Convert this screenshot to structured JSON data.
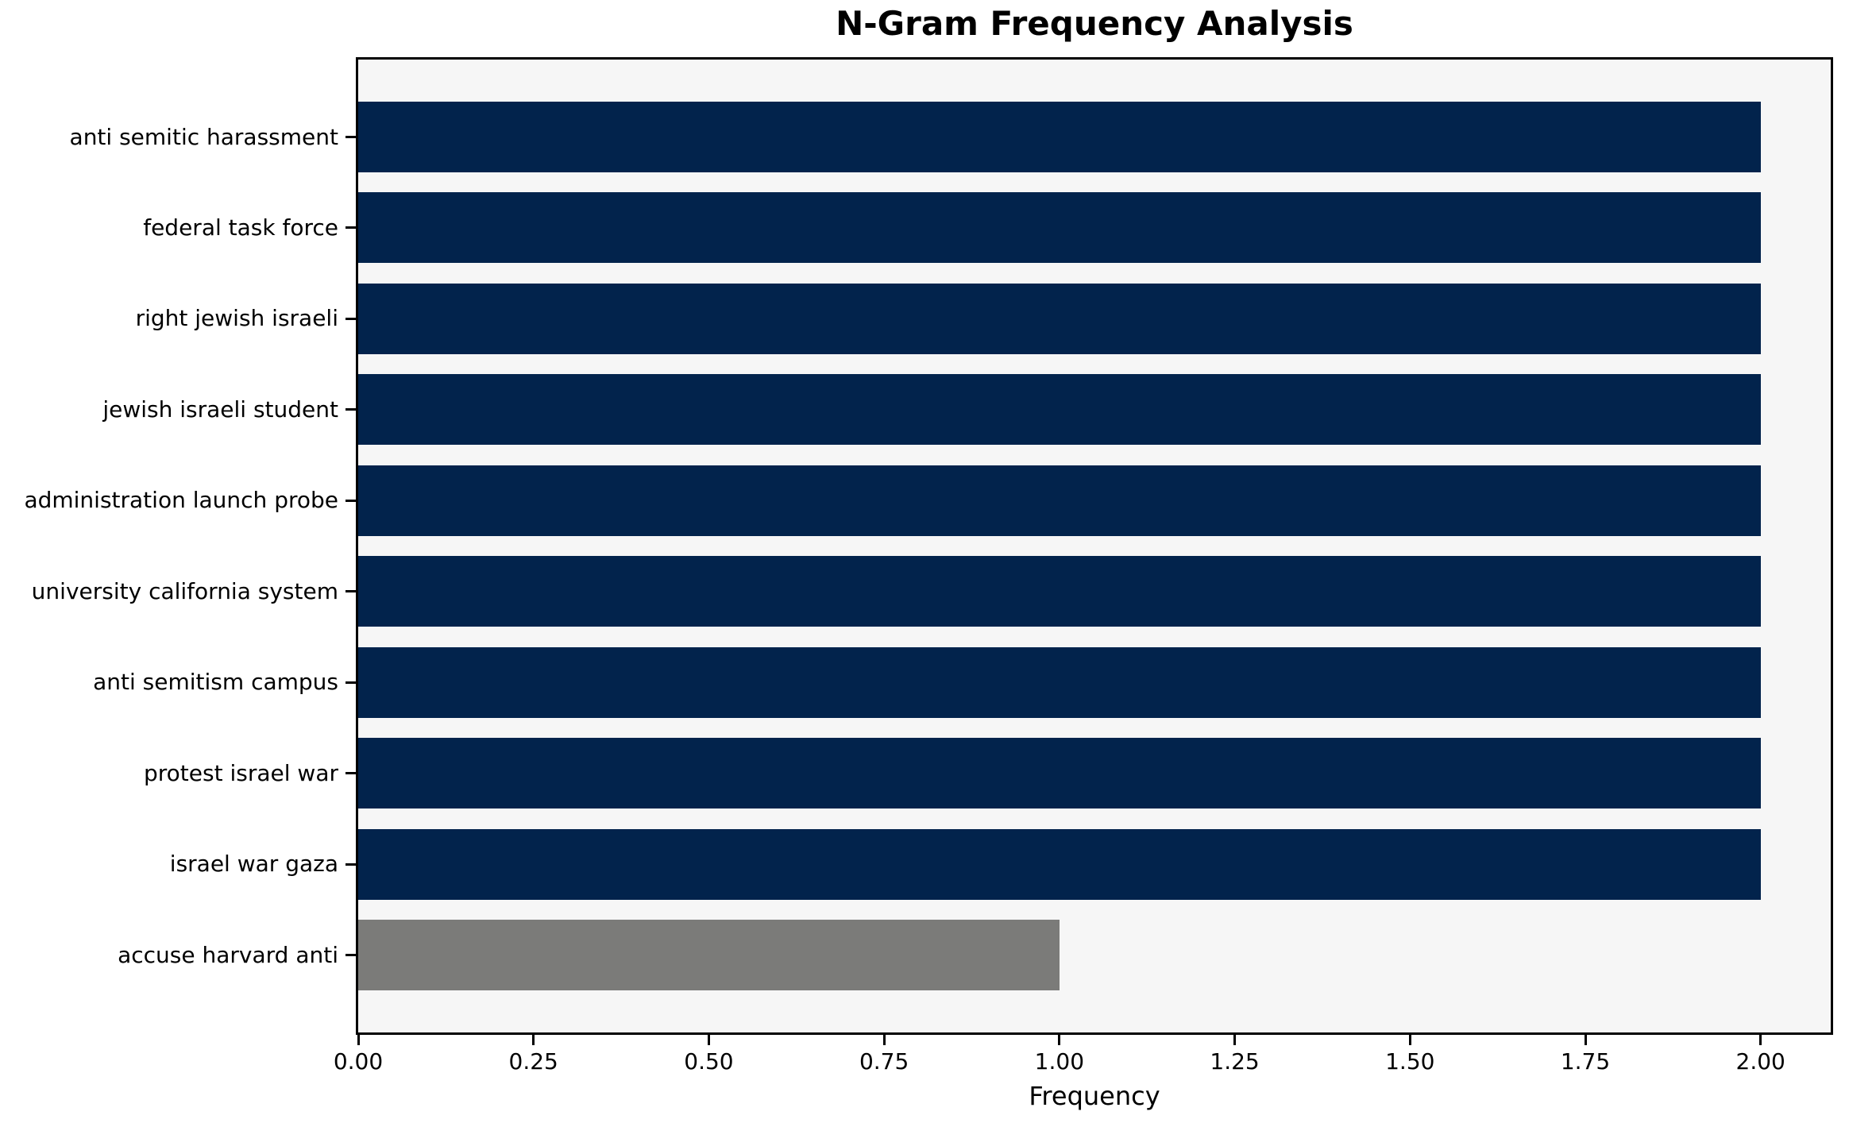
{
  "chart_data": {
    "type": "bar",
    "orientation": "horizontal",
    "title": "N-Gram Frequency Analysis",
    "xlabel": "Frequency",
    "ylabel": "",
    "categories": [
      "anti semitic harassment",
      "federal task force",
      "right jewish israeli",
      "jewish israeli student",
      "administration launch probe",
      "university california system",
      "anti semitism campus",
      "protest israel war",
      "israel war gaza",
      "accuse harvard anti"
    ],
    "values": [
      2,
      2,
      2,
      2,
      2,
      2,
      2,
      2,
      2,
      1
    ],
    "bar_colors": [
      "#02234c",
      "#02234c",
      "#02234c",
      "#02234c",
      "#02234c",
      "#02234c",
      "#02234c",
      "#02234c",
      "#02234c",
      "#7b7b79"
    ],
    "xlim": [
      0,
      2.1
    ],
    "xticks": [
      0,
      0.25,
      0.5,
      0.75,
      1.0,
      1.25,
      1.5,
      1.75,
      2.0
    ],
    "xtick_labels": [
      "0.00",
      "0.25",
      "0.50",
      "0.75",
      "1.00",
      "1.25",
      "1.50",
      "1.75",
      "2.00"
    ],
    "grid": false,
    "legend": "none",
    "colors": {
      "plot_background": "#f6f6f6",
      "figure_background": "#ffffff",
      "spine": "#000000",
      "text": "#000000"
    }
  }
}
